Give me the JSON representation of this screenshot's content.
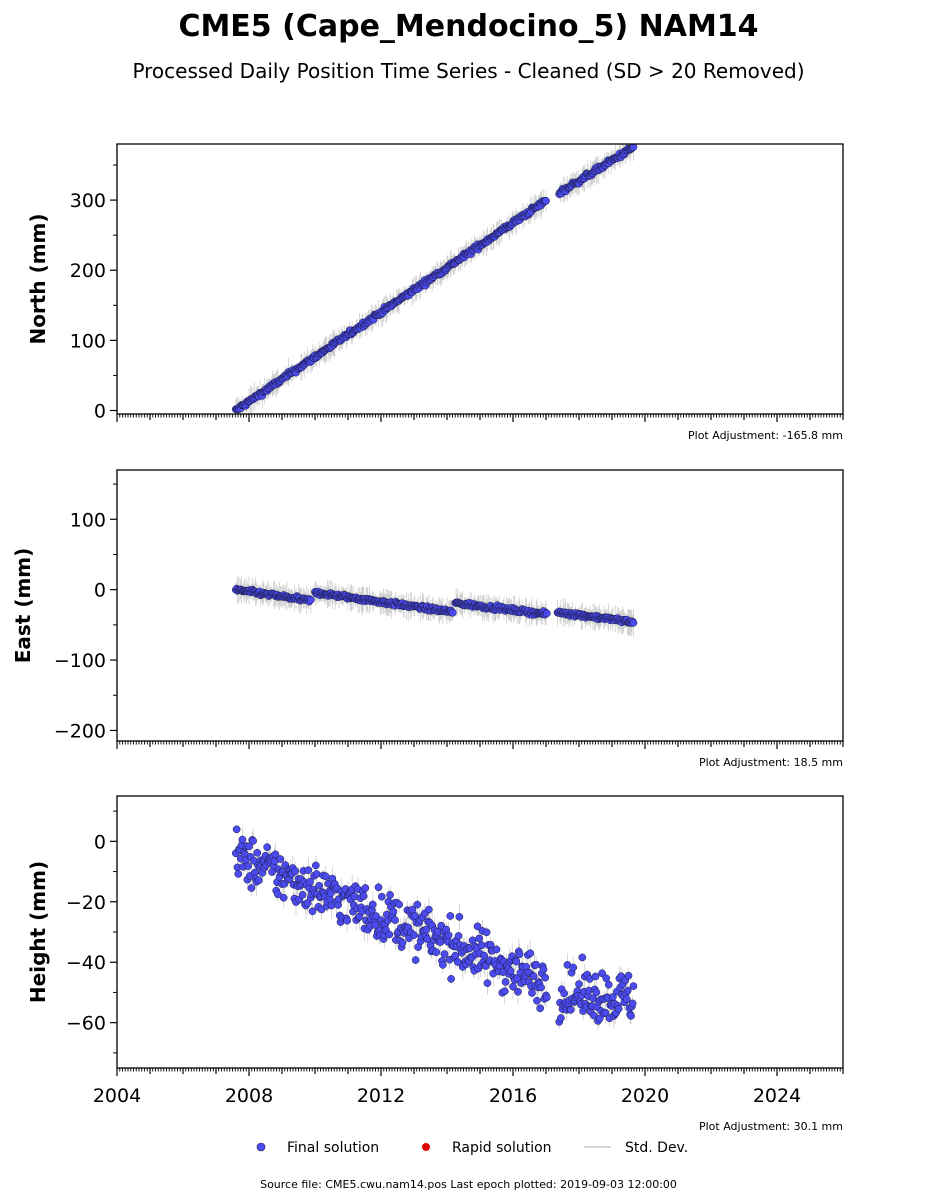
{
  "title": "CME5 (Cape_Mendocino_5) NAM14",
  "subtitle": "Processed Daily Position Time Series - Cleaned (SD > 20 Removed)",
  "footer": "Source file: CME5.cwu.nam14.pos  Last epoch plotted: 2019-09-03 12:00:00",
  "colors": {
    "final": "#4b4bf0",
    "final_edge": "#1a1a40",
    "rapid": "#e00000",
    "stddev": "#b8b8b8"
  },
  "legend": [
    {
      "label": "Final solution",
      "marker": "dot",
      "color": "#4b4bf0"
    },
    {
      "label": "Rapid solution",
      "marker": "dot",
      "color": "#e00000"
    },
    {
      "label": "Std. Dev.",
      "marker": "line",
      "color": "#c8c8c8"
    }
  ],
  "chart_data": [
    {
      "type": "scatter",
      "ylabel": "North (mm)",
      "adjustment": "Plot Adjustment: -165.8 mm",
      "xlim": [
        2004,
        2026
      ],
      "ylim": [
        -5,
        380
      ],
      "yticks": [
        0,
        100,
        200,
        300
      ],
      "ytick_labels": [
        "0",
        "100",
        "200",
        "300"
      ],
      "show_xtick_labels": false,
      "series": [
        {
          "segments": [
            [
              2007.6,
              0.0,
              2017.02,
              300.0
            ],
            [
              2017.4,
              310.0,
              2019.67,
              376.0
            ]
          ],
          "scatter": 2.5
        }
      ]
    },
    {
      "type": "scatter",
      "ylabel": "East (mm)",
      "adjustment": "Plot Adjustment: 18.5 mm",
      "xlim": [
        2004,
        2026
      ],
      "ylim": [
        -215,
        170
      ],
      "yticks": [
        -200,
        -100,
        0,
        100
      ],
      "ytick_labels": [
        "−200",
        "−100",
        "0",
        "100"
      ],
      "show_xtick_labels": false,
      "series": [
        {
          "segments": [
            [
              2007.6,
              0.0,
              2009.9,
              -16.0
            ],
            [
              2010.0,
              -4.0,
              2014.2,
              -32.0
            ],
            [
              2014.25,
              -19.0,
              2017.05,
              -35.0
            ],
            [
              2017.35,
              -32.0,
              2019.67,
              -46.0
            ]
          ],
          "scatter": 2.0
        }
      ]
    },
    {
      "type": "scatter",
      "ylabel": "Height (mm)",
      "adjustment": "Plot Adjustment: 30.1 mm",
      "xlim": [
        2004,
        2026
      ],
      "ylim": [
        -75,
        15
      ],
      "yticks": [
        -60,
        -40,
        -20,
        0
      ],
      "ytick_labels": [
        "−60",
        "−40",
        "−20",
        "0"
      ],
      "show_xtick_labels": true,
      "xticks": [
        2004,
        2008,
        2012,
        2016,
        2020,
        2024
      ],
      "series": [
        {
          "segments": [
            [
              2007.6,
              -5.0,
              2017.05,
              -47.0
            ],
            [
              2017.4,
              -50.0,
              2019.67,
              -52.0
            ]
          ],
          "scatter": 6.0
        }
      ]
    }
  ]
}
